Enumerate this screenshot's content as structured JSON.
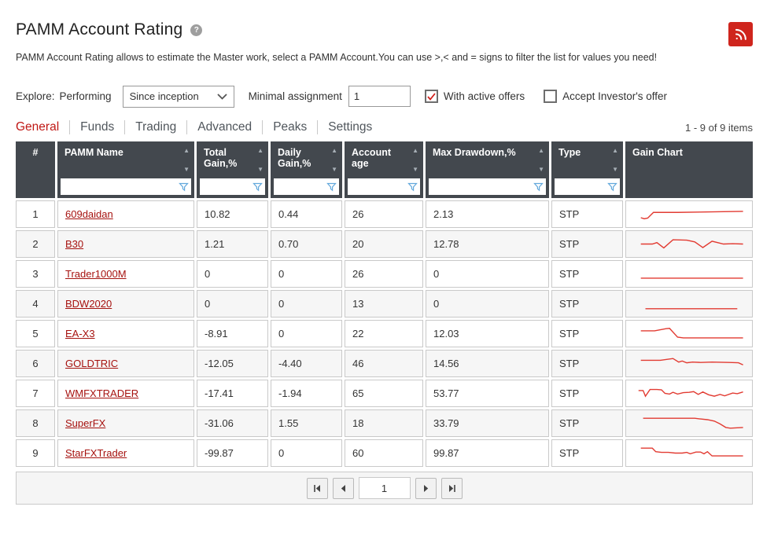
{
  "header": {
    "title": "PAMM Account Rating",
    "help_glyph": "?",
    "description": "PAMM Account Rating allows to estimate the Master work, select a PAMM Account.You can use >,< and = signs to filter the list for values you need!"
  },
  "filters": {
    "explore_label": "Explore:",
    "explore_value": "Performing",
    "period_value": "Since inception",
    "minimal_assignment_label": "Minimal assignment",
    "minimal_assignment_value": "1",
    "with_active_offers": {
      "label": "With active offers",
      "checked": true
    },
    "accept_investors_offer": {
      "label": "Accept Investor's offer",
      "checked": false
    }
  },
  "tabs": [
    {
      "label": "General",
      "active": true
    },
    {
      "label": "Funds",
      "active": false
    },
    {
      "label": "Trading",
      "active": false
    },
    {
      "label": "Advanced",
      "active": false
    },
    {
      "label": "Peaks",
      "active": false
    },
    {
      "label": "Settings",
      "active": false
    }
  ],
  "table": {
    "items_count": "1 - 9 of 9 items",
    "columns": [
      {
        "key": "num",
        "label": "#",
        "sortable": false,
        "filterable": false
      },
      {
        "key": "name",
        "label": "PAMM Name",
        "sortable": true,
        "filterable": true
      },
      {
        "key": "total_gain",
        "label": "Total Gain,%",
        "sortable": true,
        "filterable": true
      },
      {
        "key": "daily_gain",
        "label": "Daily Gain,%",
        "sortable": true,
        "filterable": true
      },
      {
        "key": "account_age",
        "label": "Account age",
        "sortable": true,
        "filterable": true
      },
      {
        "key": "max_drawdown",
        "label": "Max Drawdown,%",
        "sortable": true,
        "filterable": true
      },
      {
        "key": "type",
        "label": "Type",
        "sortable": true,
        "filterable": true
      },
      {
        "key": "gain_chart",
        "label": "Gain Chart",
        "sortable": false,
        "filterable": false
      }
    ],
    "rows": [
      {
        "num": "1",
        "name": "609daidan",
        "total_gain": "10.82",
        "daily_gain": "0.44",
        "account_age": "26",
        "max_drawdown": "2.13",
        "type": "STP",
        "spark": [
          [
            8,
            20
          ],
          [
            11,
            21.5
          ],
          [
            14,
            20.5
          ],
          [
            19,
            12.5
          ],
          [
            40,
            12.5
          ],
          [
            60,
            12
          ],
          [
            80,
            11.5
          ],
          [
            97,
            11
          ]
        ]
      },
      {
        "num": "2",
        "name": "B30",
        "total_gain": "1.21",
        "daily_gain": "0.70",
        "account_age": "20",
        "max_drawdown": "12.78",
        "type": "STP",
        "spark": [
          [
            8,
            15
          ],
          [
            18,
            15
          ],
          [
            22,
            13
          ],
          [
            28,
            20.5
          ],
          [
            36,
            9
          ],
          [
            48,
            9.5
          ],
          [
            55,
            12
          ],
          [
            62,
            20
          ],
          [
            70,
            11
          ],
          [
            80,
            15
          ],
          [
            88,
            14.5
          ],
          [
            97,
            15
          ]
        ]
      },
      {
        "num": "3",
        "name": "Trader1000M",
        "total_gain": "0",
        "daily_gain": "0",
        "account_age": "26",
        "max_drawdown": "0",
        "type": "STP",
        "spark": [
          [
            8,
            21
          ],
          [
            97,
            21
          ]
        ]
      },
      {
        "num": "4",
        "name": "BDW2020",
        "total_gain": "0",
        "daily_gain": "0",
        "account_age": "13",
        "max_drawdown": "0",
        "type": "STP",
        "spark": [
          [
            12,
            22
          ],
          [
            92,
            22
          ]
        ]
      },
      {
        "num": "5",
        "name": "EA-X3",
        "total_gain": "-8.91",
        "daily_gain": "0",
        "account_age": "22",
        "max_drawdown": "12.03",
        "type": "STP",
        "spark": [
          [
            8,
            11
          ],
          [
            20,
            11
          ],
          [
            30,
            8
          ],
          [
            33,
            7.5
          ],
          [
            40,
            20
          ],
          [
            45,
            21
          ],
          [
            97,
            21
          ]
        ]
      },
      {
        "num": "6",
        "name": "GOLDTRIC",
        "total_gain": "-12.05",
        "daily_gain": "-4.40",
        "account_age": "46",
        "max_drawdown": "14.56",
        "type": "STP",
        "spark": [
          [
            8,
            10.5
          ],
          [
            25,
            10.5
          ],
          [
            36,
            8
          ],
          [
            41,
            13
          ],
          [
            44,
            11.5
          ],
          [
            48,
            14
          ],
          [
            53,
            13
          ],
          [
            60,
            13.5
          ],
          [
            70,
            13
          ],
          [
            85,
            13.5
          ],
          [
            93,
            14
          ],
          [
            97,
            17
          ]
        ]
      },
      {
        "num": "7",
        "name": "WMFXTRADER",
        "total_gain": "-17.41",
        "daily_gain": "-1.94",
        "account_age": "65",
        "max_drawdown": "53.77",
        "type": "STP",
        "spark": [
          [
            6,
            11
          ],
          [
            10,
            11
          ],
          [
            12,
            19
          ],
          [
            16,
            9.5
          ],
          [
            22,
            9.5
          ],
          [
            26,
            10
          ],
          [
            29,
            15
          ],
          [
            33,
            16
          ],
          [
            36,
            13.5
          ],
          [
            40,
            16
          ],
          [
            45,
            14
          ],
          [
            50,
            13.5
          ],
          [
            54,
            12.5
          ],
          [
            58,
            16.5
          ],
          [
            62,
            13
          ],
          [
            67,
            17
          ],
          [
            72,
            19
          ],
          [
            77,
            16.5
          ],
          [
            81,
            18.5
          ],
          [
            88,
            14.5
          ],
          [
            92,
            15.5
          ],
          [
            97,
            13
          ]
        ]
      },
      {
        "num": "8",
        "name": "SuperFX",
        "total_gain": "-31.06",
        "daily_gain": "1.55",
        "account_age": "18",
        "max_drawdown": "33.79",
        "type": "STP",
        "spark": [
          [
            10,
            8
          ],
          [
            55,
            8
          ],
          [
            60,
            9
          ],
          [
            66,
            10
          ],
          [
            72,
            12
          ],
          [
            77,
            16
          ],
          [
            82,
            21
          ],
          [
            86,
            22
          ],
          [
            92,
            21.5
          ],
          [
            97,
            21
          ]
        ]
      },
      {
        "num": "9",
        "name": "StarFXTrader",
        "total_gain": "-99.87",
        "daily_gain": "0",
        "account_age": "60",
        "max_drawdown": "99.87",
        "type": "STP",
        "spark": [
          [
            8,
            8
          ],
          [
            18,
            8
          ],
          [
            21,
            13
          ],
          [
            26,
            14
          ],
          [
            32,
            14
          ],
          [
            38,
            15
          ],
          [
            44,
            15
          ],
          [
            48,
            14
          ],
          [
            51,
            16
          ],
          [
            56,
            13.5
          ],
          [
            60,
            13.5
          ],
          [
            63,
            16
          ],
          [
            66,
            13
          ],
          [
            70,
            19
          ],
          [
            97,
            19
          ]
        ]
      }
    ]
  },
  "pagination": {
    "page": "1"
  },
  "colors": {
    "accent_red": "#c01815",
    "link_red": "#a6120f",
    "header_bg": "#43484e",
    "spark_red": "#e23b32",
    "rss_red": "#cf251d",
    "funnel_blue": "#62a8dc",
    "check_red": "#d0201c"
  }
}
